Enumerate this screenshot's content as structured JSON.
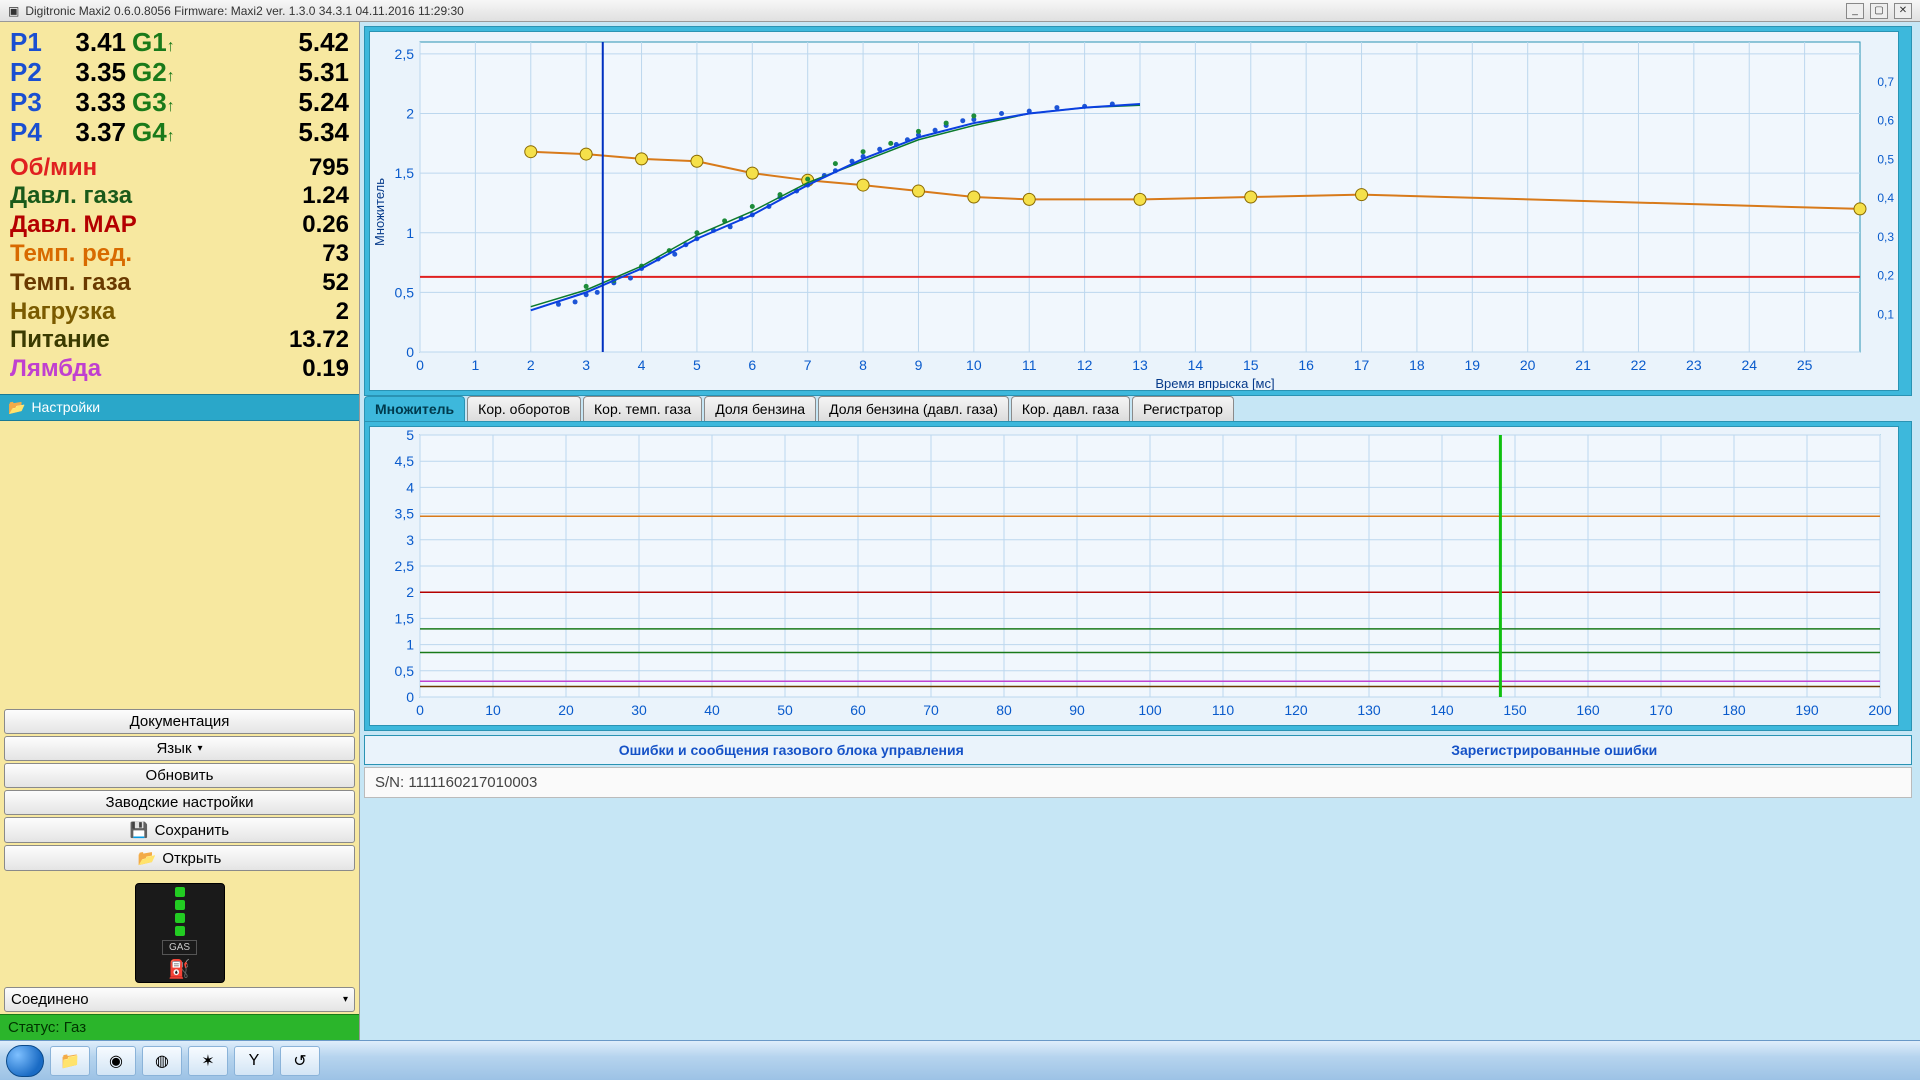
{
  "window": {
    "title": "Digitronic Maxi2 0.6.0.8056 Firmware: Maxi2 ver. 1.3.0  34.3.1  04.11.2016 11:29:30"
  },
  "cylinders": {
    "p_color": "#1a4fd1",
    "g_color": "#1a7a1a",
    "rows": [
      {
        "p": "P1",
        "pv": "3.41",
        "g": "G1",
        "gv": "5.42"
      },
      {
        "p": "P2",
        "pv": "3.35",
        "g": "G2",
        "gv": "5.31"
      },
      {
        "p": "P3",
        "pv": "3.33",
        "g": "G3",
        "gv": "5.24"
      },
      {
        "p": "P4",
        "pv": "3.37",
        "g": "G4",
        "gv": "5.34"
      }
    ]
  },
  "params": [
    {
      "label": "Об/мин",
      "value": "795",
      "color": "#e02020"
    },
    {
      "label": "Давл. газа",
      "value": "1.24",
      "color": "#1a5a1a"
    },
    {
      "label": "Давл. MAP",
      "value": "0.26",
      "color": "#b40000"
    },
    {
      "label": "Темп. ред.",
      "value": "73",
      "color": "#d86a00"
    },
    {
      "label": "Темп. газа",
      "value": "52",
      "color": "#6a3a00"
    },
    {
      "label": "Нагрузка",
      "value": "2",
      "color": "#7a5a00"
    },
    {
      "label": "Питание",
      "value": "13.72",
      "color": "#3a3a00"
    },
    {
      "label": "Лямбда",
      "value": "0.19",
      "color": "#c040d0"
    }
  ],
  "settings_header": "Настройки",
  "sidebar": {
    "doc": "Документация",
    "lang": "Язык",
    "refresh": "Обновить",
    "factory": "Заводские настройки",
    "save": "Сохранить",
    "open": "Открыть",
    "connected": "Соединено"
  },
  "status_line": "Статус: Газ",
  "tabs": [
    "Множитель",
    "Кор. оборотов",
    "Кор. темп. газа",
    "Доля бензина",
    "Доля бензина (давл. газа)",
    "Кор. давл. газа",
    "Регистратор"
  ],
  "top_chart": {
    "type": "scatter+line",
    "x_label": "Время впрыска [мс]",
    "y_label": "Множитель",
    "xlim": [
      0,
      26
    ],
    "ylim": [
      0,
      2.6
    ],
    "xticks": [
      0,
      1,
      2,
      3,
      4,
      5,
      6,
      7,
      8,
      9,
      10,
      11,
      12,
      13,
      14,
      15,
      16,
      17,
      18,
      19,
      20,
      21,
      22,
      23,
      24,
      25
    ],
    "yticks": [
      0,
      0.5,
      1,
      1.5,
      2,
      2.5
    ],
    "right_ticks": [
      0.1,
      0.2,
      0.3,
      0.4,
      0.5,
      0.6,
      0.7
    ],
    "grid_color": "#bcd7ee",
    "axis_text_color": "#0a5bcc",
    "cursor_x": 3.3,
    "cursor_color": "#0030c0",
    "red_line": {
      "y": 0.63,
      "color": "#e02020",
      "width": 2
    },
    "blue_curve": {
      "color": "#0a3fe0",
      "width": 2,
      "points": [
        [
          2,
          0.35
        ],
        [
          3,
          0.5
        ],
        [
          4,
          0.7
        ],
        [
          5,
          0.95
        ],
        [
          6,
          1.15
        ],
        [
          7,
          1.4
        ],
        [
          8,
          1.62
        ],
        [
          9,
          1.8
        ],
        [
          10,
          1.92
        ],
        [
          11,
          2.0
        ],
        [
          12,
          2.05
        ],
        [
          13,
          2.08
        ]
      ]
    },
    "green_curve": {
      "color": "#0b7a2d",
      "width": 1.5,
      "points": [
        [
          2,
          0.38
        ],
        [
          3,
          0.52
        ],
        [
          4,
          0.72
        ],
        [
          5,
          0.98
        ],
        [
          6,
          1.18
        ],
        [
          7,
          1.42
        ],
        [
          8,
          1.6
        ],
        [
          9,
          1.78
        ],
        [
          10,
          1.9
        ],
        [
          11,
          2.0
        ],
        [
          12,
          2.05
        ],
        [
          13,
          2.07
        ]
      ]
    },
    "orange_series": {
      "color": "#d87a1a",
      "width": 2,
      "marker": "circle",
      "marker_fill": "#f5e04a",
      "marker_stroke": "#8a6a00",
      "points": [
        [
          2,
          1.68
        ],
        [
          3,
          1.66
        ],
        [
          4,
          1.62
        ],
        [
          5,
          1.6
        ],
        [
          6,
          1.5
        ],
        [
          7,
          1.44
        ],
        [
          8,
          1.4
        ],
        [
          9,
          1.35
        ],
        [
          10,
          1.3
        ],
        [
          11,
          1.28
        ],
        [
          13,
          1.28
        ],
        [
          15,
          1.3
        ],
        [
          17,
          1.32
        ],
        [
          26,
          1.2
        ]
      ]
    },
    "scatter_blue": {
      "color": "#1d55d6",
      "points": [
        [
          2.5,
          0.4
        ],
        [
          2.8,
          0.42
        ],
        [
          3.0,
          0.48
        ],
        [
          3.2,
          0.5
        ],
        [
          3.5,
          0.58
        ],
        [
          3.8,
          0.62
        ],
        [
          4.0,
          0.7
        ],
        [
          4.3,
          0.78
        ],
        [
          4.6,
          0.82
        ],
        [
          4.8,
          0.9
        ],
        [
          5.0,
          0.95
        ],
        [
          5.3,
          1.02
        ],
        [
          5.6,
          1.05
        ],
        [
          5.8,
          1.12
        ],
        [
          6.0,
          1.15
        ],
        [
          6.3,
          1.22
        ],
        [
          6.5,
          1.3
        ],
        [
          6.8,
          1.35
        ],
        [
          7.0,
          1.4
        ],
        [
          7.3,
          1.48
        ],
        [
          7.5,
          1.52
        ],
        [
          7.8,
          1.6
        ],
        [
          8.0,
          1.64
        ],
        [
          8.3,
          1.7
        ],
        [
          8.6,
          1.74
        ],
        [
          8.8,
          1.78
        ],
        [
          9.0,
          1.82
        ],
        [
          9.3,
          1.86
        ],
        [
          9.5,
          1.9
        ],
        [
          9.8,
          1.94
        ],
        [
          10.0,
          1.95
        ],
        [
          10.5,
          2.0
        ],
        [
          11.0,
          2.02
        ],
        [
          11.5,
          2.05
        ],
        [
          12.0,
          2.06
        ],
        [
          12.5,
          2.08
        ]
      ]
    },
    "scatter_green": {
      "color": "#1c8c3a",
      "points": [
        [
          3.0,
          0.55
        ],
        [
          3.5,
          0.6
        ],
        [
          4.0,
          0.72
        ],
        [
          4.5,
          0.85
        ],
        [
          5.0,
          1.0
        ],
        [
          5.5,
          1.1
        ],
        [
          6.0,
          1.22
        ],
        [
          6.5,
          1.32
        ],
        [
          7.0,
          1.45
        ],
        [
          7.5,
          1.58
        ],
        [
          8.0,
          1.68
        ],
        [
          8.5,
          1.75
        ],
        [
          9.0,
          1.85
        ],
        [
          9.5,
          1.92
        ],
        [
          10.0,
          1.98
        ]
      ]
    }
  },
  "bottom_chart": {
    "type": "timeseries",
    "xlim": [
      0,
      200
    ],
    "ylim": [
      0,
      5
    ],
    "xticks": [
      0,
      10,
      20,
      30,
      40,
      50,
      60,
      70,
      80,
      90,
      100,
      110,
      120,
      130,
      140,
      150,
      160,
      170,
      180,
      190,
      200
    ],
    "yticks": [
      0,
      0.5,
      1,
      1.5,
      2,
      2.5,
      3,
      3.5,
      4,
      4.5,
      5
    ],
    "grid_color": "#bcd7ee",
    "axis_text_color": "#0a5bcc",
    "cursor_x": 148,
    "cursor_color": "#10c010",
    "series": [
      {
        "color": "#d87a1a",
        "y": 3.45
      },
      {
        "color": "#b40000",
        "y": 2.0
      },
      {
        "color": "#1a7a1a",
        "y": 1.3
      },
      {
        "color": "#1a7a1a",
        "y": 0.85
      },
      {
        "color": "#c040d0",
        "y": 0.3
      },
      {
        "color": "#6a3a00",
        "y": 0.2
      }
    ]
  },
  "messages": {
    "left": "Ошибки и сообщения газового блока управления",
    "right": "Зарегистрированные ошибки"
  },
  "serial": "S/N: 1111160217010003",
  "gas_label": "GAS"
}
